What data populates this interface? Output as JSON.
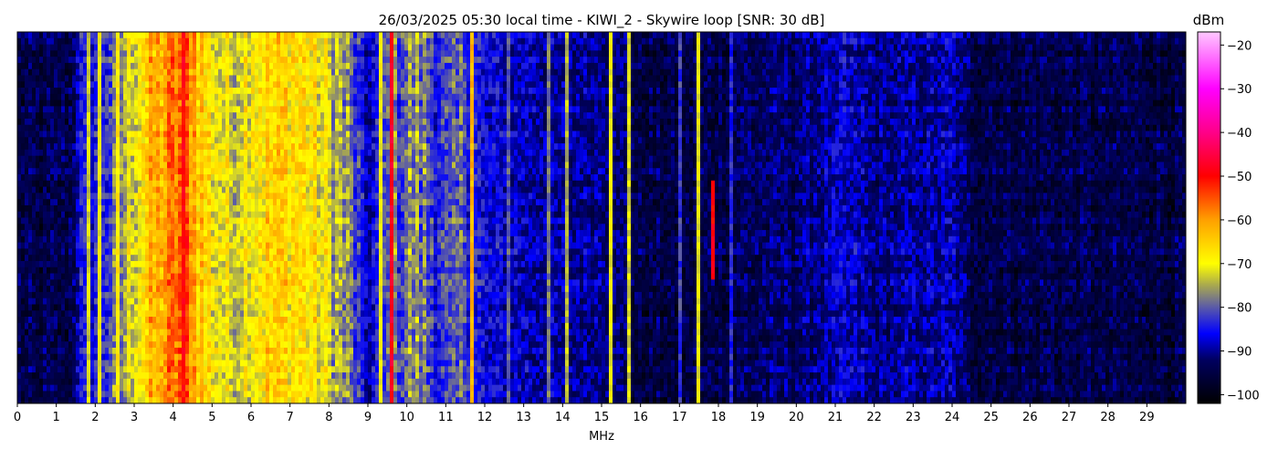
{
  "chart_data": {
    "type": "heatmap",
    "title": "26/03/2025 05:30 local time - KIWI_2 - Skywire loop [SNR: 30 dB]",
    "xlabel": "MHz",
    "ylabel": "",
    "xlim": [
      0,
      30
    ],
    "x_ticks": [
      0,
      1,
      2,
      3,
      4,
      5,
      6,
      7,
      8,
      9,
      10,
      11,
      12,
      13,
      14,
      15,
      16,
      17,
      18,
      19,
      20,
      21,
      22,
      23,
      24,
      25,
      26,
      27,
      28,
      29
    ],
    "colorbar": {
      "label": "dBm",
      "range": [
        -102,
        -17
      ],
      "ticks": [
        -20,
        -30,
        -40,
        -50,
        -60,
        -70,
        -80,
        -90,
        -100
      ],
      "colormap": [
        {
          "value": -102,
          "color": "#000000"
        },
        {
          "value": -92,
          "color": "#000060"
        },
        {
          "value": -86,
          "color": "#0000ff"
        },
        {
          "value": -80,
          "color": "#5a5aa8"
        },
        {
          "value": -75,
          "color": "#a8a850"
        },
        {
          "value": -70,
          "color": "#ffff00"
        },
        {
          "value": -60,
          "color": "#ffa000"
        },
        {
          "value": -50,
          "color": "#ff0000"
        },
        {
          "value": -40,
          "color": "#ff0088"
        },
        {
          "value": -30,
          "color": "#ff00ff"
        },
        {
          "value": -17,
          "color": "#ffc8ff"
        }
      ]
    },
    "mean_level_profile_mhz_dbm": [
      [
        0,
        -95
      ],
      [
        1.4,
        -94
      ],
      [
        1.6,
        -86
      ],
      [
        2.5,
        -80
      ],
      [
        3.0,
        -70
      ],
      [
        3.5,
        -63
      ],
      [
        4.0,
        -58
      ],
      [
        4.3,
        -54
      ],
      [
        4.6,
        -62
      ],
      [
        5.0,
        -69
      ],
      [
        5.5,
        -72
      ],
      [
        6.0,
        -68
      ],
      [
        6.5,
        -66
      ],
      [
        7.0,
        -66
      ],
      [
        7.5,
        -68
      ],
      [
        8.0,
        -72
      ],
      [
        8.5,
        -78
      ],
      [
        9.0,
        -89
      ],
      [
        9.4,
        -82
      ],
      [
        10.2,
        -77
      ],
      [
        11.0,
        -84
      ],
      [
        11.5,
        -80
      ],
      [
        12.0,
        -87
      ],
      [
        13.0,
        -88
      ],
      [
        14.0,
        -90
      ],
      [
        15.0,
        -90
      ],
      [
        16.0,
        -95
      ],
      [
        17.0,
        -95
      ],
      [
        20.0,
        -92
      ],
      [
        21.3,
        -88
      ],
      [
        22.0,
        -91
      ],
      [
        24.0,
        -89
      ],
      [
        24.5,
        -94
      ],
      [
        30.0,
        -95
      ]
    ],
    "narrowband_signals": [
      {
        "mhz": 1.8,
        "dbm": -72
      },
      {
        "mhz": 2.1,
        "dbm": -70
      },
      {
        "mhz": 2.6,
        "dbm": -68
      },
      {
        "mhz": 4.3,
        "dbm": -50
      },
      {
        "mhz": 9.3,
        "dbm": -70
      },
      {
        "mhz": 9.6,
        "dbm": -48
      },
      {
        "mhz": 11.7,
        "dbm": -62
      },
      {
        "mhz": 12.6,
        "dbm": -80
      },
      {
        "mhz": 13.6,
        "dbm": -78
      },
      {
        "mhz": 14.1,
        "dbm": -74
      },
      {
        "mhz": 15.2,
        "dbm": -70
      },
      {
        "mhz": 15.7,
        "dbm": -72
      },
      {
        "mhz": 17.0,
        "dbm": -82
      },
      {
        "mhz": 17.5,
        "dbm": -70
      },
      {
        "mhz": 18.3,
        "dbm": -84
      },
      {
        "mhz": 17.9,
        "dbm": -50,
        "time_fraction": [
          0.4,
          0.66
        ]
      }
    ]
  }
}
